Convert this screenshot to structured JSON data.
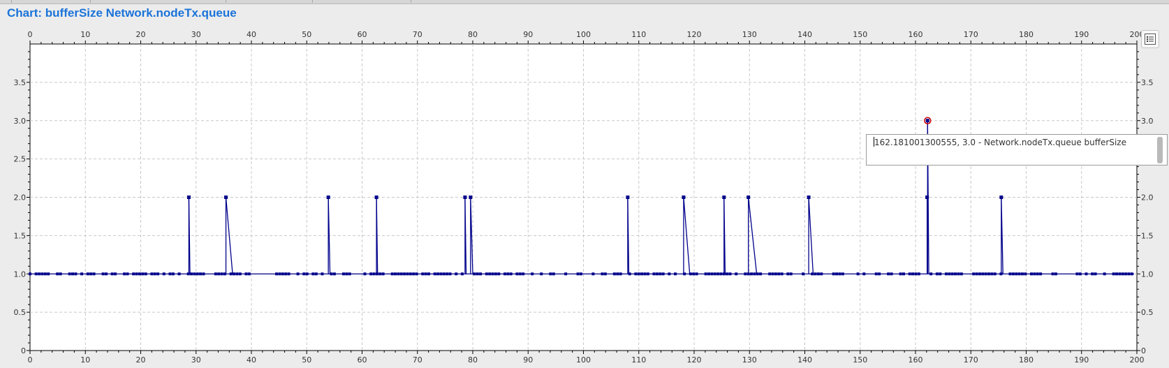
{
  "title": "Chart: bufferSize Network.nodeTx.queue",
  "tooltip": "162.181001300555, 3.0 - Network.nodeTx.queue bufferSize",
  "legend_button_icon": "legend-list-icon",
  "colors": {
    "series": "#00008b",
    "title": "#1a73d9",
    "highlight": "#cc0000"
  },
  "chart_data": {
    "type": "line",
    "xlim": [
      0,
      200
    ],
    "ylim": [
      0,
      4
    ],
    "xticks": [
      0,
      10,
      20,
      30,
      40,
      50,
      60,
      70,
      80,
      90,
      100,
      110,
      120,
      130,
      140,
      150,
      160,
      170,
      180,
      190,
      200
    ],
    "yticks": [
      "0",
      "0.5",
      "1.0",
      "1.5",
      "2.0",
      "2.5",
      "3.0",
      "3.5"
    ],
    "ytick_values": [
      0,
      0.5,
      1,
      1.5,
      2,
      2.5,
      3,
      3.5
    ],
    "grid": true,
    "baseline": 1.0,
    "baseline_range": [
      0,
      199.5
    ],
    "spikes": [
      {
        "x": 28.7,
        "y": 2.0,
        "back": 28.9
      },
      {
        "x": 35.4,
        "y": 2.0,
        "back": 36.6
      },
      {
        "x": 53.9,
        "y": 2.0,
        "back": 54.2
      },
      {
        "x": 62.6,
        "y": 2.0,
        "back": 62.8
      },
      {
        "x": 78.6,
        "y": 2.0,
        "back": 78.8
      },
      {
        "x": 79.6,
        "y": 2.0,
        "back": 80.0
      },
      {
        "x": 108.0,
        "y": 2.0,
        "back": 108.2
      },
      {
        "x": 118.1,
        "y": 2.0,
        "back": 119.2
      },
      {
        "x": 125.4,
        "y": 2.0,
        "back": 125.6
      },
      {
        "x": 129.8,
        "y": 2.0,
        "back": 131.3
      },
      {
        "x": 140.7,
        "y": 2.0,
        "back": 141.5
      },
      {
        "x": 162.1,
        "y": 2.0,
        "back": null
      },
      {
        "x": 162.18,
        "y": 3.0,
        "back": 162.4
      },
      {
        "x": 175.5,
        "y": 2.0,
        "back": 175.8
      }
    ],
    "highlight": {
      "x": 162.181001300555,
      "y": 3.0
    }
  }
}
